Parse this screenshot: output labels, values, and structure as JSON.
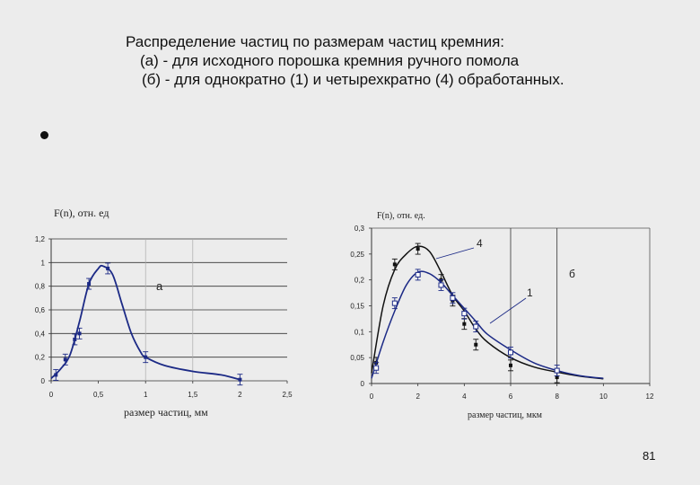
{
  "title": {
    "line1": "Распределение частиц по размерам частиц кремния:",
    "line2": "(а) -   для исходного порошка кремния ручного помола",
    "line3": "(б) -  для однократно (1) и четырехкратно (4)  обработанных."
  },
  "page_number": "81",
  "chart_data": [
    {
      "type": "line",
      "ylabel": "F(n), отн. ед",
      "xlabel": "размер частиц, мм",
      "xlim": [
        0,
        2.5
      ],
      "ylim": [
        0,
        1.2
      ],
      "xticks": [
        "0",
        "0,5",
        "1",
        "1,5",
        "2",
        "2,5"
      ],
      "yticks": [
        "0",
        "0,2",
        "0,4",
        "0,6",
        "0,8",
        "1",
        "1,2"
      ],
      "grid": "horizontal",
      "annotation": "a",
      "series": [
        {
          "color": "#1c2a86",
          "curve": [
            [
              0,
              0.02
            ],
            [
              0.1,
              0.1
            ],
            [
              0.2,
              0.22
            ],
            [
              0.3,
              0.5
            ],
            [
              0.4,
              0.82
            ],
            [
              0.5,
              0.95
            ],
            [
              0.55,
              0.97
            ],
            [
              0.65,
              0.9
            ],
            [
              0.75,
              0.65
            ],
            [
              0.85,
              0.4
            ],
            [
              0.95,
              0.24
            ],
            [
              1.0,
              0.2
            ],
            [
              1.2,
              0.13
            ],
            [
              1.5,
              0.08
            ],
            [
              1.8,
              0.05
            ],
            [
              2.0,
              0.01
            ]
          ],
          "markers": [
            [
              0.05,
              0.05
            ],
            [
              0.15,
              0.18
            ],
            [
              0.25,
              0.35
            ],
            [
              0.3,
              0.4
            ],
            [
              0.4,
              0.82
            ],
            [
              0.6,
              0.95
            ],
            [
              1.0,
              0.2
            ],
            [
              2.0,
              0.01
            ]
          ]
        }
      ]
    },
    {
      "type": "line",
      "ylabel": "F(n), отн. ед.",
      "xlabel": "размер частиц, мкм",
      "xlim": [
        0,
        12
      ],
      "ylim": [
        0,
        0.3
      ],
      "xticks": [
        "0",
        "2",
        "4",
        "6",
        "8",
        "10",
        "12"
      ],
      "yticks": [
        "0",
        "0,05",
        "0,1",
        "0,15",
        "0,2",
        "0,25",
        "0,3"
      ],
      "grid": "vertical",
      "annotations": [
        "4",
        "б",
        "1"
      ],
      "series": [
        {
          "name": "4",
          "color": "#111111",
          "curve": [
            [
              0,
              0.02
            ],
            [
              0.5,
              0.15
            ],
            [
              1,
              0.22
            ],
            [
              1.5,
              0.25
            ],
            [
              2,
              0.265
            ],
            [
              2.5,
              0.255
            ],
            [
              3,
              0.215
            ],
            [
              3.5,
              0.17
            ],
            [
              4,
              0.14
            ],
            [
              4.5,
              0.105
            ],
            [
              5,
              0.08
            ],
            [
              6,
              0.05
            ],
            [
              7,
              0.032
            ],
            [
              8,
              0.022
            ],
            [
              9,
              0.014
            ],
            [
              10,
              0.009
            ]
          ],
          "markers": [
            [
              0.2,
              0.04
            ],
            [
              1,
              0.23
            ],
            [
              2,
              0.26
            ],
            [
              3,
              0.2
            ],
            [
              3.5,
              0.16
            ],
            [
              4,
              0.115
            ],
            [
              4.5,
              0.075
            ],
            [
              6,
              0.035
            ],
            [
              8,
              0.012
            ]
          ]
        },
        {
          "name": "1",
          "color": "#1c2a86",
          "curve": [
            [
              0,
              0.01
            ],
            [
              0.5,
              0.08
            ],
            [
              1,
              0.14
            ],
            [
              1.5,
              0.19
            ],
            [
              2,
              0.215
            ],
            [
              2.5,
              0.212
            ],
            [
              3,
              0.195
            ],
            [
              3.5,
              0.17
            ],
            [
              4,
              0.145
            ],
            [
              4.5,
              0.12
            ],
            [
              5,
              0.095
            ],
            [
              6,
              0.065
            ],
            [
              7,
              0.04
            ],
            [
              8,
              0.025
            ],
            [
              9,
              0.015
            ],
            [
              10,
              0.01
            ]
          ],
          "markers": [
            [
              0.2,
              0.03
            ],
            [
              1,
              0.155
            ],
            [
              2,
              0.21
            ],
            [
              3,
              0.19
            ],
            [
              3.5,
              0.165
            ],
            [
              4,
              0.135
            ],
            [
              4.5,
              0.11
            ],
            [
              6,
              0.06
            ],
            [
              8,
              0.025
            ]
          ]
        }
      ]
    }
  ]
}
